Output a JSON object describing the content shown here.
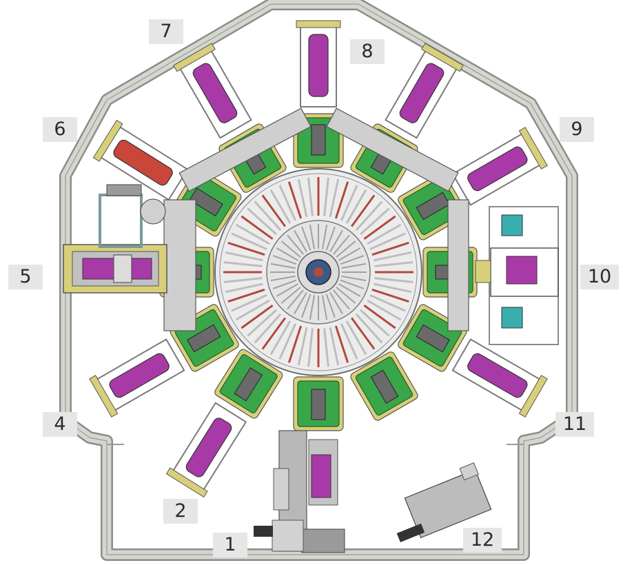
{
  "labels": {
    "l1": "1",
    "l2": "2",
    "l4": "4",
    "l5": "5",
    "l6": "6",
    "l7": "7",
    "l8": "8",
    "l9": "9",
    "l10": "10",
    "l11": "11",
    "l12": "12"
  },
  "colors": {
    "frame": "#c8ccc4",
    "frame_edge": "#8a8e88",
    "green": "#3aa64a",
    "yellow": "#d8cf7a",
    "magenta": "#a83aa8",
    "red": "#c8463a",
    "teal": "#3aaeae",
    "gray": "#9a9a9a",
    "dark": "#4a4a4a",
    "disc": "#ececec"
  }
}
